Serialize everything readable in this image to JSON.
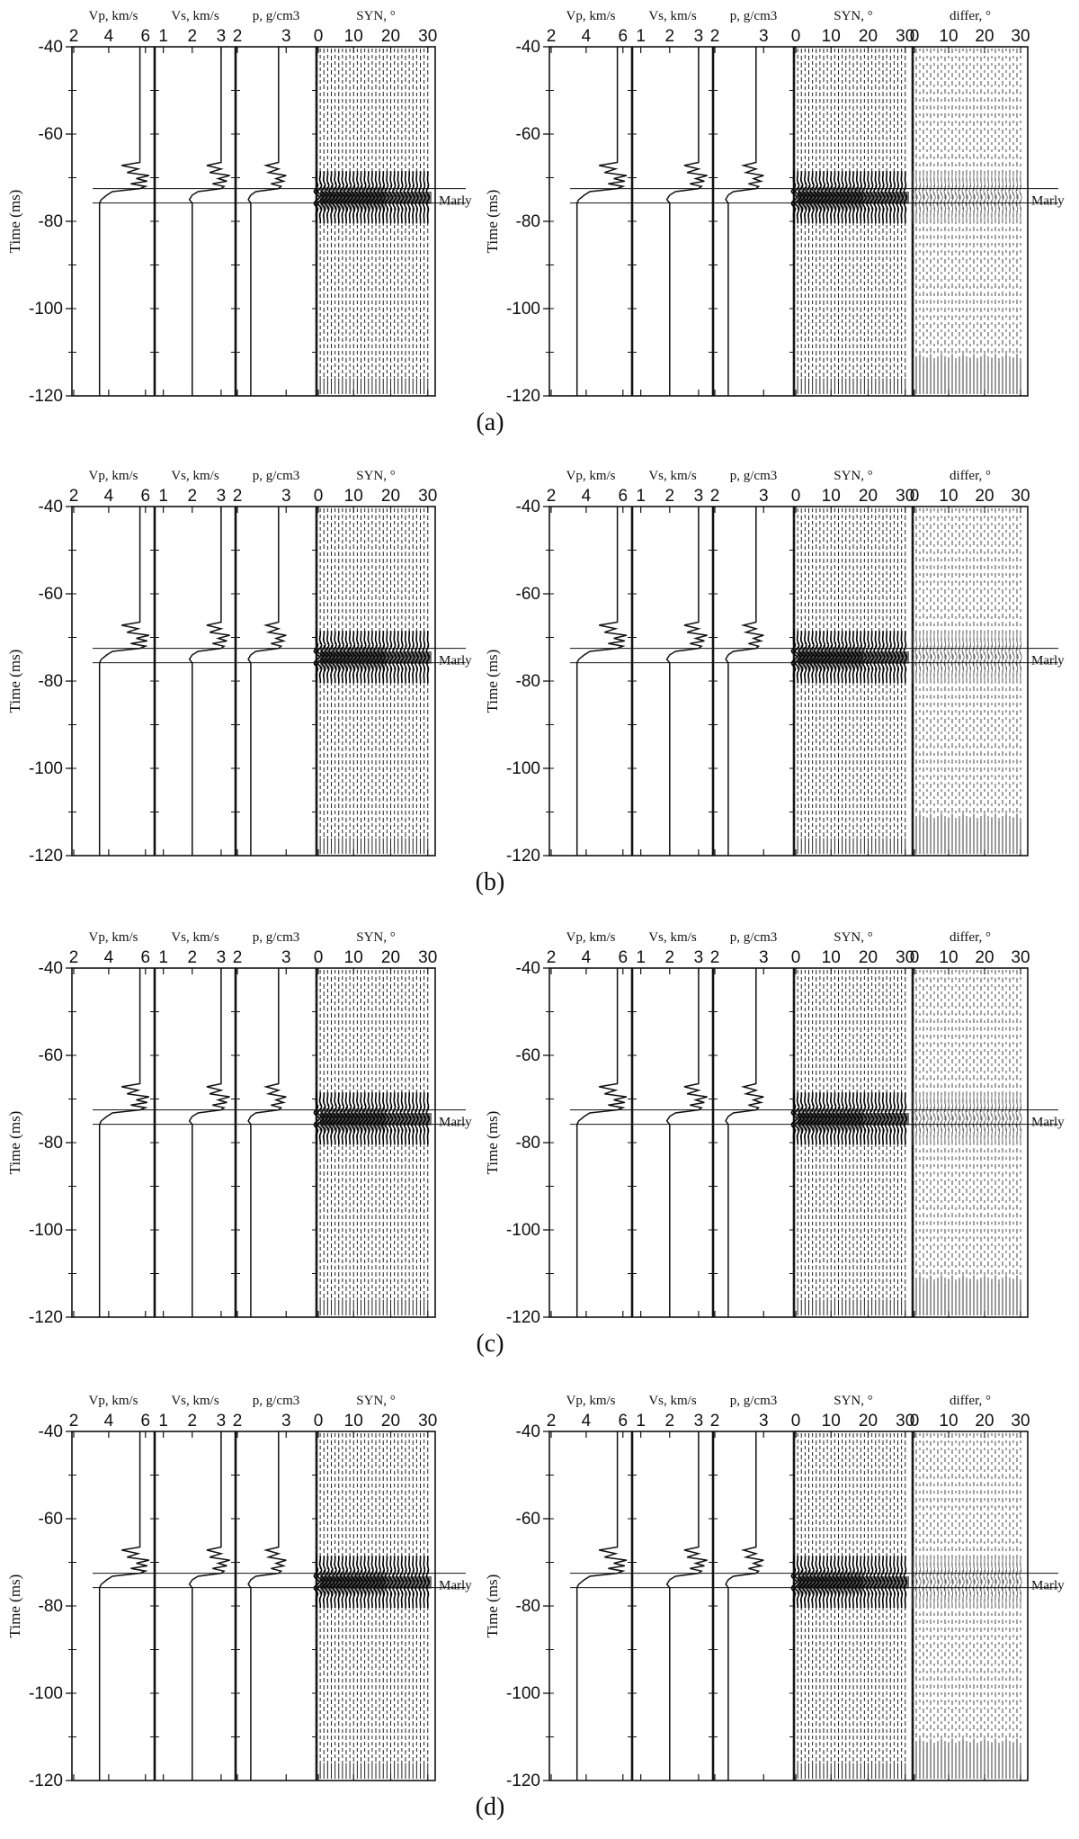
{
  "chart_data": {
    "type": "line",
    "subfigure_captions": [
      "(a)",
      "(b)",
      "(c)",
      "(d)"
    ],
    "ylabel": "Time (ms)",
    "ylim": [
      -120,
      -40
    ],
    "y_ticks": [
      "-40",
      "-60",
      "-80",
      "-100",
      "-120"
    ],
    "marker": {
      "label": "Marly",
      "time_top": -72.5,
      "time_bottom": -75.8
    },
    "tracks": [
      {
        "key": "vp",
        "label": "Vp, km/s",
        "range": [
          2,
          6.5
        ],
        "ticks": [
          "2",
          "4",
          "6"
        ]
      },
      {
        "key": "vs",
        "label": "Vs, km/s",
        "range": [
          0.7,
          3.5
        ],
        "ticks": [
          "1",
          "2",
          "3"
        ]
      },
      {
        "key": "rho",
        "label": "p, g/cm3",
        "range": [
          2,
          3.6
        ],
        "ticks": [
          "2",
          "3"
        ]
      },
      {
        "key": "syn",
        "label": "SYN, °",
        "range": [
          0,
          32
        ],
        "ticks": [
          "0",
          "10",
          "20",
          "30"
        ]
      },
      {
        "key": "differ",
        "label": "differ, °",
        "range": [
          0,
          32
        ],
        "ticks": [
          "0",
          "10",
          "20",
          "30"
        ]
      }
    ],
    "panels": [
      {
        "name": "left",
        "tracks": [
          "vp",
          "vs",
          "rho",
          "syn"
        ]
      },
      {
        "name": "right",
        "tracks": [
          "vp",
          "vs",
          "rho",
          "syn",
          "differ"
        ]
      }
    ],
    "logs": {
      "vp": {
        "baseline": 5.7,
        "below": 3.5,
        "points": [
          [
            -40,
            5.7
          ],
          [
            -66.5,
            5.7
          ],
          [
            -67.2,
            4.7
          ],
          [
            -68.0,
            5.6
          ],
          [
            -68.8,
            5.0
          ],
          [
            -69.5,
            6.2
          ],
          [
            -70.2,
            5.5
          ],
          [
            -70.8,
            6.1
          ],
          [
            -71.4,
            5.2
          ],
          [
            -72.0,
            6.0
          ],
          [
            -72.5,
            5.7
          ],
          [
            -73.2,
            4.2
          ],
          [
            -74.0,
            3.9
          ],
          [
            -75.0,
            3.6
          ],
          [
            -75.8,
            3.5
          ],
          [
            -120,
            3.5
          ]
        ]
      },
      "vs": {
        "baseline": 3.0,
        "below": 2.0,
        "points": [
          [
            -40,
            3.0
          ],
          [
            -66.5,
            3.0
          ],
          [
            -67.2,
            2.5
          ],
          [
            -68.0,
            3.0
          ],
          [
            -68.8,
            2.6
          ],
          [
            -69.5,
            3.3
          ],
          [
            -70.2,
            2.9
          ],
          [
            -70.8,
            3.2
          ],
          [
            -71.4,
            2.7
          ],
          [
            -72.0,
            3.1
          ],
          [
            -72.5,
            3.0
          ],
          [
            -73.2,
            2.2
          ],
          [
            -74.0,
            2.0
          ],
          [
            -75.0,
            1.9
          ],
          [
            -75.8,
            2.0
          ],
          [
            -120,
            2.0
          ]
        ]
      },
      "rho": {
        "baseline": 2.85,
        "below": 2.3,
        "points": [
          [
            -40,
            2.85
          ],
          [
            -66.5,
            2.85
          ],
          [
            -67.2,
            2.6
          ],
          [
            -68.0,
            2.85
          ],
          [
            -68.8,
            2.65
          ],
          [
            -69.5,
            3.0
          ],
          [
            -70.2,
            2.8
          ],
          [
            -70.8,
            2.95
          ],
          [
            -71.4,
            2.7
          ],
          [
            -72.0,
            2.9
          ],
          [
            -72.5,
            2.85
          ],
          [
            -73.2,
            2.4
          ],
          [
            -74.0,
            2.3
          ],
          [
            -75.0,
            2.25
          ],
          [
            -75.8,
            2.3
          ],
          [
            -120,
            2.3
          ]
        ]
      }
    },
    "gather": {
      "angles_start": 0,
      "angles_end": 30,
      "trace_count": 31,
      "event_time": -74.5
    }
  }
}
